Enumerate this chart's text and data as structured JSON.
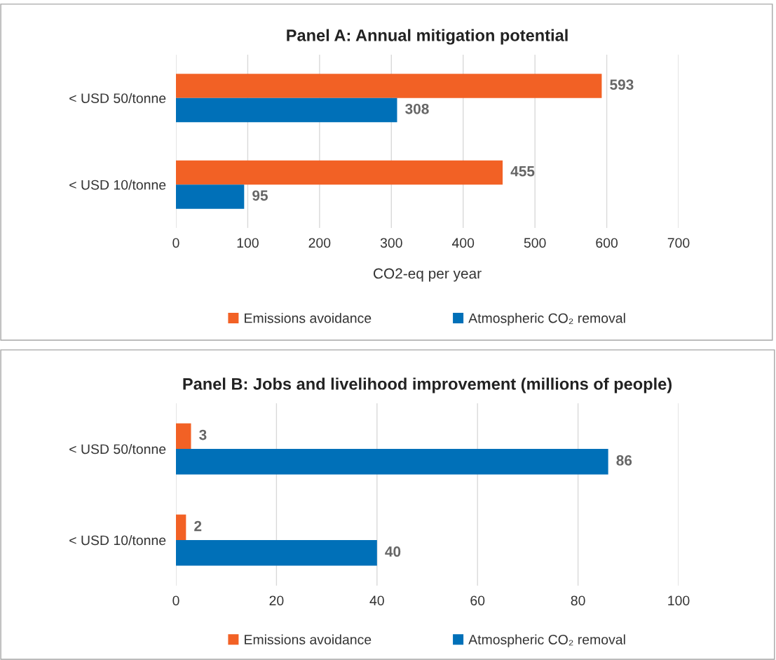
{
  "chart_data": [
    {
      "type": "bar",
      "orientation": "horizontal",
      "title": "Panel A: Annual mitigation potential",
      "xlabel": "CO2-eq per year",
      "categories": [
        "< USD 50/tonne",
        "< USD 10/tonne"
      ],
      "series": [
        {
          "name": "Emissions avoidance",
          "color": "#f26125",
          "values": [
            593,
            455
          ]
        },
        {
          "name": "Atmospheric CO₂ removal",
          "color": "#0070b8",
          "values": [
            308,
            95
          ]
        }
      ],
      "xlim": [
        0,
        700
      ],
      "xticks": [
        0,
        100,
        200,
        300,
        400,
        500,
        600,
        700
      ],
      "grid": "x",
      "legend": "bottom",
      "data_labels": true
    },
    {
      "type": "bar",
      "orientation": "horizontal",
      "title": "Panel B: Jobs and livelihood improvement (millions of people)",
      "categories": [
        "< USD 50/tonne",
        "< USD 10/tonne"
      ],
      "series": [
        {
          "name": "Emissions avoidance",
          "color": "#f26125",
          "values": [
            3,
            2
          ]
        },
        {
          "name": "Atmospheric CO₂ removal",
          "color": "#0070b8",
          "values": [
            86,
            40
          ]
        }
      ],
      "xlim": [
        0,
        100
      ],
      "xticks": [
        0,
        20,
        40,
        60,
        80,
        100
      ],
      "grid": "x",
      "legend": "bottom",
      "data_labels": true
    }
  ]
}
